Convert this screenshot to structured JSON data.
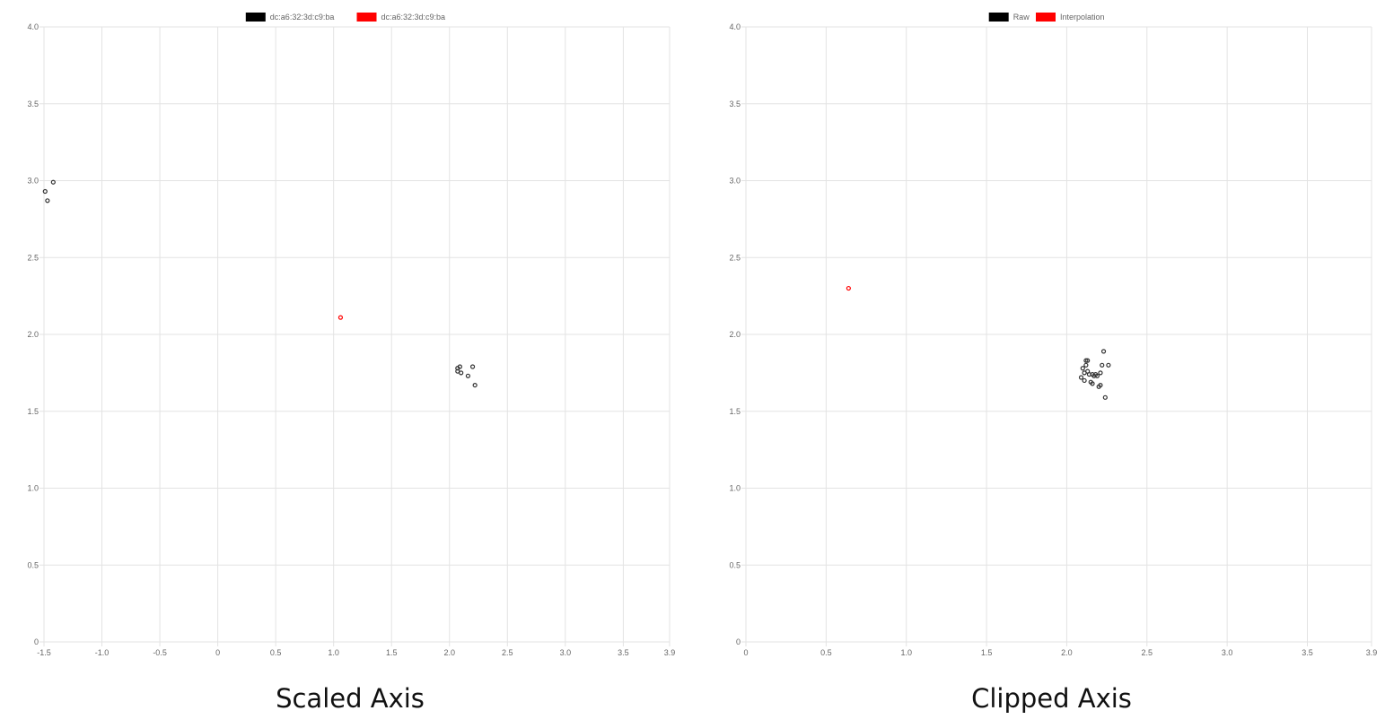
{
  "chart_data": [
    {
      "type": "scatter",
      "caption": "Scaled Axis",
      "grid": true,
      "legend_position": "top-center",
      "xlim": [
        -1.5,
        3.9
      ],
      "ylim": [
        0,
        4.0
      ],
      "x_ticks": [
        "-1.5",
        "-1.0",
        "-0.5",
        "0",
        "0.5",
        "1.0",
        "1.5",
        "2.0",
        "2.5",
        "3.0",
        "3.5",
        "3.9"
      ],
      "x_tick_values": [
        -1.5,
        -1.0,
        -0.5,
        0,
        0.5,
        1.0,
        1.5,
        2.0,
        2.5,
        3.0,
        3.5,
        3.9
      ],
      "y_ticks": [
        "0",
        "0.5",
        "1.0",
        "1.5",
        "2.0",
        "2.5",
        "3.0",
        "3.5",
        "4.0"
      ],
      "y_tick_values": [
        0,
        0.5,
        1.0,
        1.5,
        2.0,
        2.5,
        3.0,
        3.5,
        4.0
      ],
      "series": [
        {
          "name": "dc:a6:32:3d:c9:ba",
          "color": "#000000",
          "points": [
            {
              "x": -1.49,
              "y": 2.93
            },
            {
              "x": -1.47,
              "y": 2.87
            },
            {
              "x": -1.42,
              "y": 2.99
            },
            {
              "x": 2.07,
              "y": 1.76
            },
            {
              "x": 2.07,
              "y": 1.78
            },
            {
              "x": 2.09,
              "y": 1.79
            },
            {
              "x": 2.1,
              "y": 1.75
            },
            {
              "x": 2.16,
              "y": 1.73
            },
            {
              "x": 2.2,
              "y": 1.79
            },
            {
              "x": 2.22,
              "y": 1.67
            }
          ]
        },
        {
          "name": "dc:a6:32:3d:c9:ba",
          "color": "#ff0000",
          "points": [
            {
              "x": 1.06,
              "y": 2.11
            }
          ]
        }
      ]
    },
    {
      "type": "scatter",
      "caption": "Clipped Axis",
      "grid": true,
      "legend_position": "top-center",
      "xlim": [
        0,
        3.9
      ],
      "ylim": [
        0,
        4.0
      ],
      "x_ticks": [
        "0",
        "0.5",
        "1.0",
        "1.5",
        "2.0",
        "2.5",
        "3.0",
        "3.5",
        "3.9"
      ],
      "x_tick_values": [
        0,
        0.5,
        1.0,
        1.5,
        2.0,
        2.5,
        3.0,
        3.5,
        3.9
      ],
      "y_ticks": [
        "0",
        "0.5",
        "1.0",
        "1.5",
        "2.0",
        "2.5",
        "3.0",
        "3.5",
        "4.0"
      ],
      "y_tick_values": [
        0,
        0.5,
        1.0,
        1.5,
        2.0,
        2.5,
        3.0,
        3.5,
        4.0
      ],
      "series": [
        {
          "name": "Raw",
          "color": "#000000",
          "points": [
            {
              "x": 2.09,
              "y": 1.72
            },
            {
              "x": 2.1,
              "y": 1.78
            },
            {
              "x": 2.11,
              "y": 1.7
            },
            {
              "x": 2.11,
              "y": 1.75
            },
            {
              "x": 2.12,
              "y": 1.8
            },
            {
              "x": 2.12,
              "y": 1.83
            },
            {
              "x": 2.13,
              "y": 1.76
            },
            {
              "x": 2.13,
              "y": 1.83
            },
            {
              "x": 2.14,
              "y": 1.74
            },
            {
              "x": 2.15,
              "y": 1.69
            },
            {
              "x": 2.16,
              "y": 1.68
            },
            {
              "x": 2.16,
              "y": 1.74
            },
            {
              "x": 2.17,
              "y": 1.73
            },
            {
              "x": 2.18,
              "y": 1.74
            },
            {
              "x": 2.19,
              "y": 1.73
            },
            {
              "x": 2.2,
              "y": 1.66
            },
            {
              "x": 2.21,
              "y": 1.67
            },
            {
              "x": 2.21,
              "y": 1.75
            },
            {
              "x": 2.22,
              "y": 1.8
            },
            {
              "x": 2.23,
              "y": 1.89
            },
            {
              "x": 2.24,
              "y": 1.59
            },
            {
              "x": 2.26,
              "y": 1.8
            }
          ]
        },
        {
          "name": "Interpolation",
          "color": "#ff0000",
          "points": [
            {
              "x": 0.64,
              "y": 2.3
            }
          ]
        }
      ]
    }
  ]
}
